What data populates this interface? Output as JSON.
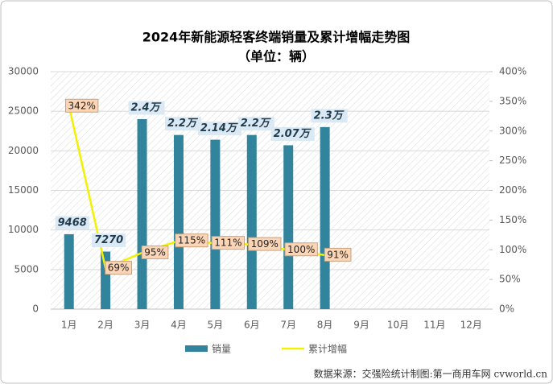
{
  "chart_data": {
    "type": "bar_line",
    "title": "2024年新能源轻客终端销量及累计增幅走势图",
    "subtitle": "（单位：辆）",
    "source": "数据来源：交强险统计制图:第一商用车网 cvworld.cn",
    "categories": [
      "1月",
      "2月",
      "3月",
      "4月",
      "5月",
      "6月",
      "7月",
      "8月",
      "9月",
      "10月",
      "11月",
      "12月"
    ],
    "series": [
      {
        "name": "销量",
        "type": "bar",
        "color": "#31849b",
        "values": [
          9468,
          7270,
          24000,
          22000,
          21400,
          22000,
          20700,
          23000,
          null,
          null,
          null,
          null
        ],
        "value_labels": [
          "9468",
          "7270",
          "2.4万",
          "2.2万",
          "2.14万",
          "2.2万",
          "2.07万",
          "2.3万",
          null,
          null,
          null,
          null
        ]
      },
      {
        "name": "累计增幅",
        "type": "line",
        "axis": "y2",
        "color": "#f2f200",
        "values": [
          342,
          69,
          95,
          115,
          111,
          109,
          100,
          91,
          null,
          null,
          null,
          null
        ],
        "value_labels": [
          "342%",
          "69%",
          "95%",
          "115%",
          "111%",
          "109%",
          "100%",
          "91%",
          null,
          null,
          null,
          null
        ]
      }
    ],
    "ylim": [
      0,
      30000
    ],
    "yticks": [
      0,
      5000,
      10000,
      15000,
      20000,
      25000,
      30000
    ],
    "y2lim": [
      0,
      400
    ],
    "y2ticks": [
      {
        "value": 0,
        "label": "0%"
      },
      {
        "value": 50,
        "label": "50%"
      },
      {
        "value": 100,
        "label": "100%"
      },
      {
        "value": 150,
        "label": "150%"
      },
      {
        "value": 200,
        "label": "200%"
      },
      {
        "value": 250,
        "label": "250%"
      },
      {
        "value": 300,
        "label": "300%"
      },
      {
        "value": 350,
        "label": "350%"
      },
      {
        "value": 400,
        "label": "400%"
      }
    ]
  }
}
